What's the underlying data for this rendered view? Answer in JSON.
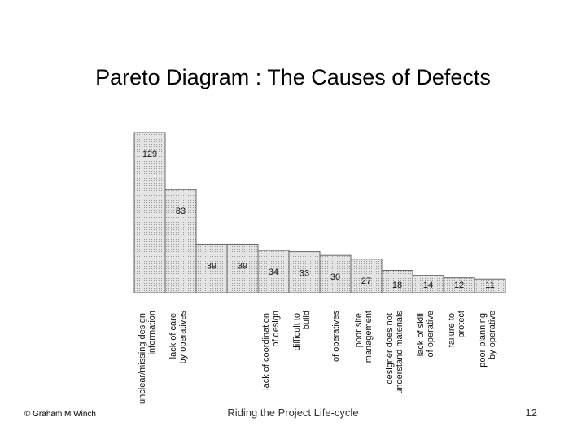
{
  "chart_data": {
    "type": "bar",
    "title": "Pareto Diagram : The Causes of Defects",
    "categories": [
      "unclear/missing design information",
      "lack of care by operatives",
      null,
      null,
      "lack of coordination of design",
      "difficult to build",
      "of operatives",
      "poor site management",
      "designer does not understand materials",
      "lack of skill of operative",
      "failure to protect",
      "poor planning by operative"
    ],
    "values": [
      129,
      83,
      39,
      39,
      34,
      33,
      30,
      27,
      18,
      14,
      12,
      11
    ],
    "color": "#d9d9d9"
  },
  "footer": {
    "left": "© Graham M Winch",
    "center": "Riding the Project Life-cycle",
    "page_number": "12"
  }
}
